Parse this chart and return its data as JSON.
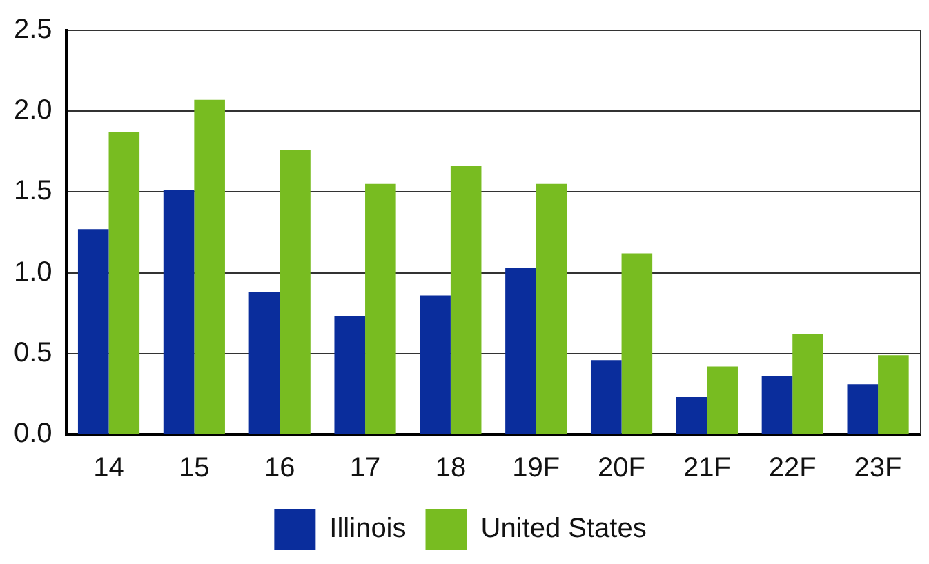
{
  "chart_data": {
    "type": "bar",
    "categories": [
      "14",
      "15",
      "16",
      "17",
      "18",
      "19F",
      "20F",
      "21F",
      "22F",
      "23F"
    ],
    "series": [
      {
        "name": "Illinois",
        "color": "#0a2d9c",
        "values": [
          1.27,
          1.51,
          0.88,
          0.73,
          0.86,
          1.03,
          0.46,
          0.23,
          0.36,
          0.31
        ]
      },
      {
        "name": "United States",
        "color": "#78bc21",
        "values": [
          1.87,
          2.07,
          1.76,
          1.55,
          1.66,
          1.55,
          1.12,
          0.42,
          0.62,
          0.49
        ]
      }
    ],
    "ylim": [
      0,
      2.5
    ],
    "yticks": [
      {
        "value": 0,
        "label": "0.0"
      },
      {
        "value": 0.5,
        "label": "0.5"
      },
      {
        "value": 1,
        "label": "1.0"
      },
      {
        "value": 1.5,
        "label": "1.5"
      },
      {
        "value": 2,
        "label": "2.0"
      },
      {
        "value": 2.5,
        "label": "2.5"
      }
    ],
    "grid": "y",
    "legend": "bottom"
  }
}
